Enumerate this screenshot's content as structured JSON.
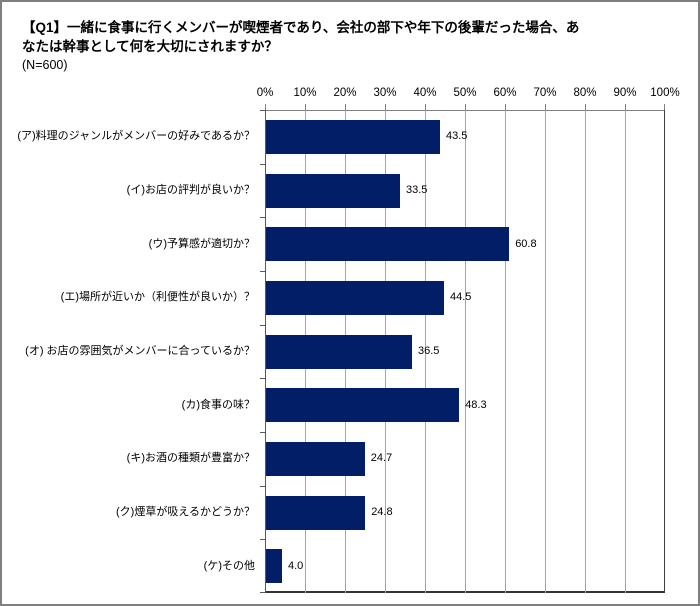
{
  "title": {
    "line1": "【Q1】一緒に食事に行くメンバーが喫煙者であり、会社の部下や年下の後輩だった場合、あ",
    "line2": "なたは幹事として何を大切にされますか？",
    "n_label": "(N=600)"
  },
  "chart_data": {
    "type": "bar",
    "orientation": "horizontal",
    "title": "【Q1】一緒に食事に行くメンバーが喫煙者であり、会社の部下や年下の後輩だった場合、あなたは幹事として何を大切にされますか？",
    "subtitle": "(N=600)",
    "categories": [
      "(ア)料理のジャンルがメンバーの好みであるか？",
      "(イ)お店の評判が良いか？",
      "(ウ)予算感が適切か？",
      "(エ)場所が近いか（利便性が良いか）？",
      "(オ) お店の雰囲気がメンバーに合っているか？",
      "(カ)食事の味？",
      "(キ)お酒の種類が豊富か？",
      "(ク)煙草が吸えるかどうか？",
      "(ケ)その他"
    ],
    "values": [
      43.5,
      33.5,
      60.8,
      44.5,
      36.5,
      48.3,
      24.7,
      24.8,
      4.0
    ],
    "value_labels": [
      "43.5",
      "33.5",
      "60.8",
      "44.5",
      "36.5",
      "48.3",
      "24.7",
      "24.8",
      "4.0"
    ],
    "x_tick_labels": [
      "0%",
      "10%",
      "20%",
      "30%",
      "40%",
      "50%",
      "60%",
      "70%",
      "80%",
      "90%",
      "100%"
    ],
    "xlim": [
      0,
      100
    ],
    "value_axis_position": "top",
    "grid": "vertical",
    "legend_position": "none",
    "colors": {
      "bar": "#011E66",
      "gridline": "#A6A6A6",
      "value_axis_line": "#808080",
      "category_axis_line": "#595959",
      "plot_border_dark": "#333333"
    }
  }
}
